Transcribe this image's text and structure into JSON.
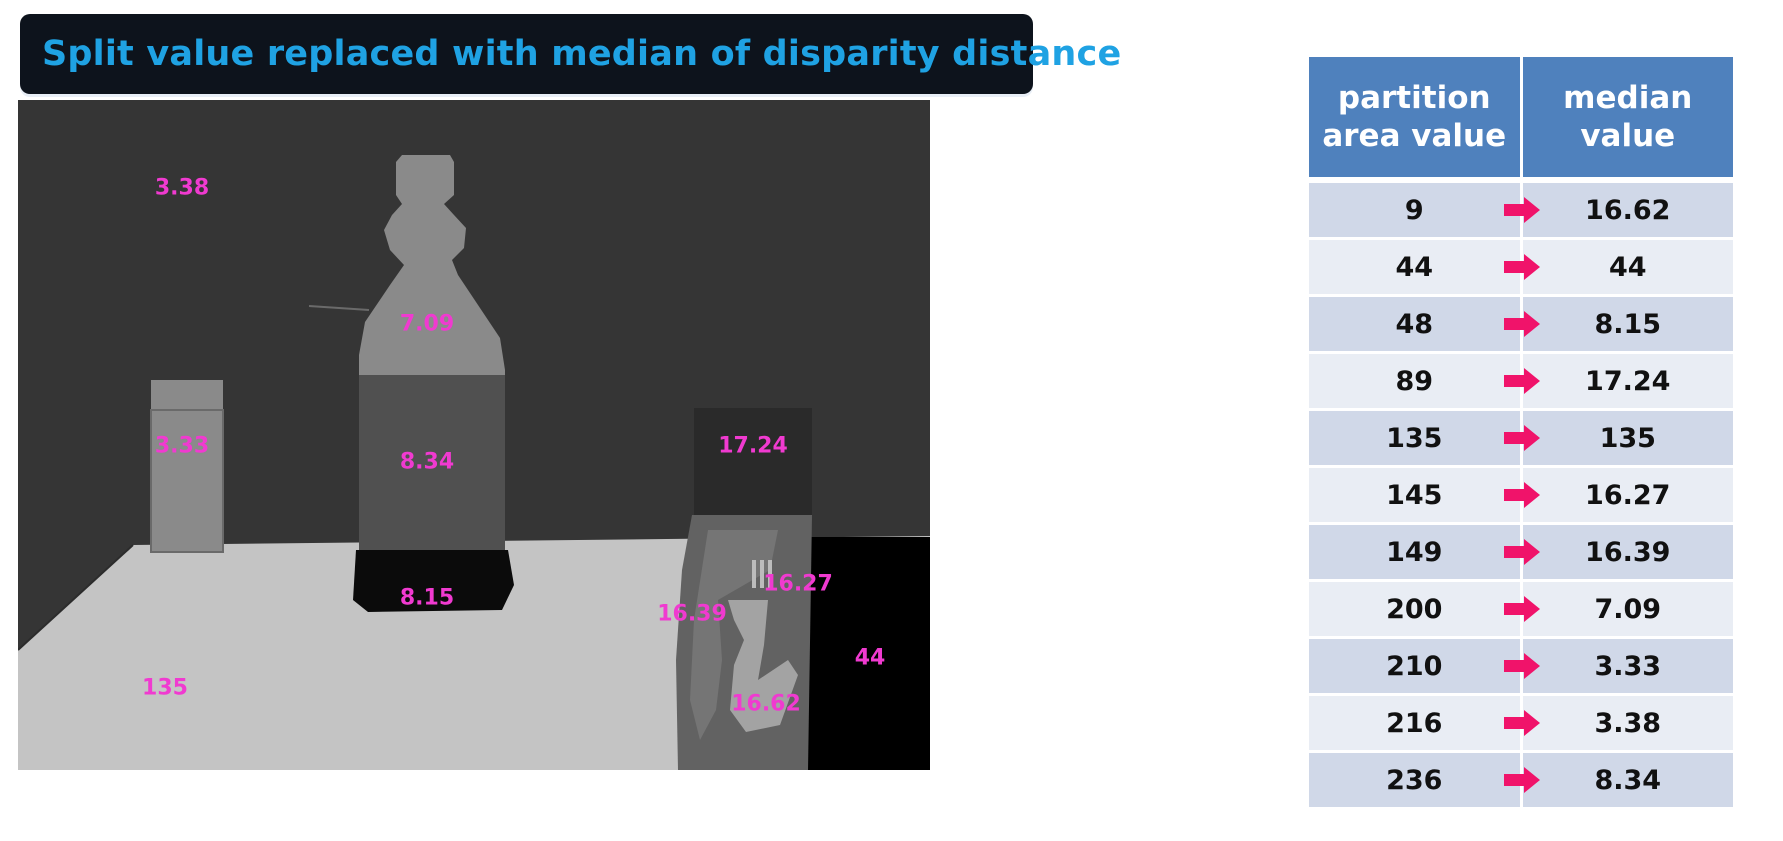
{
  "title": "Split value replaced with median of disparity distance",
  "scene": {
    "labels": [
      {
        "id": "background-wall",
        "text": "3.38"
      },
      {
        "id": "bottle-neck",
        "text": "7.09"
      },
      {
        "id": "small-bottle",
        "text": "3.33"
      },
      {
        "id": "bottle-body",
        "text": "8.34"
      },
      {
        "id": "bottle-base",
        "text": "8.15"
      },
      {
        "id": "dark-box-top",
        "text": "17.24"
      },
      {
        "id": "box-right",
        "text": "16.27"
      },
      {
        "id": "box-left",
        "text": "16.39"
      },
      {
        "id": "black-region",
        "text": "44"
      },
      {
        "id": "table-surface",
        "text": "135"
      },
      {
        "id": "box-lower",
        "text": "16.62"
      }
    ]
  },
  "table": {
    "header": [
      "partition\narea value",
      "median\nvalue"
    ],
    "arrow_color": "#f0136a",
    "rows": [
      {
        "partition": "9",
        "median": "16.62"
      },
      {
        "partition": "44",
        "median": "44"
      },
      {
        "partition": "48",
        "median": "8.15"
      },
      {
        "partition": "89",
        "median": "17.24"
      },
      {
        "partition": "135",
        "median": "135"
      },
      {
        "partition": "145",
        "median": "16.27"
      },
      {
        "partition": "149",
        "median": "16.39"
      },
      {
        "partition": "200",
        "median": "7.09"
      },
      {
        "partition": "210",
        "median": "3.33"
      },
      {
        "partition": "216",
        "median": "3.38"
      },
      {
        "partition": "236",
        "median": "8.34"
      }
    ]
  }
}
